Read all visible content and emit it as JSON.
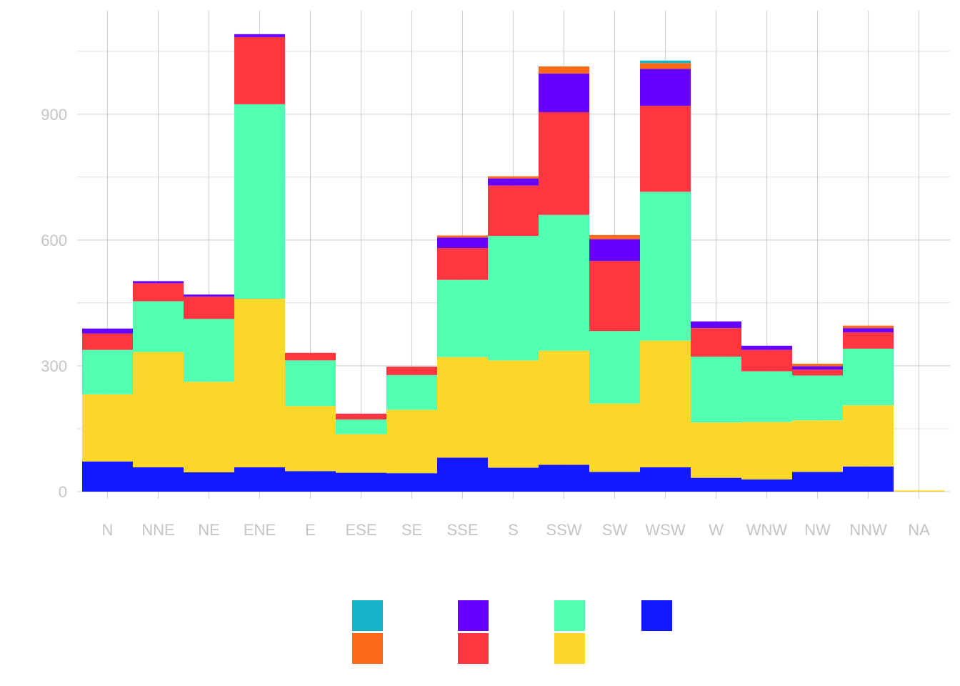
{
  "chart_data": {
    "type": "bar",
    "stacked": true,
    "categories": [
      "N",
      "NNE",
      "NE",
      "ENE",
      "E",
      "ESE",
      "SE",
      "SSE",
      "S",
      "SSW",
      "SW",
      "WSW",
      "W",
      "WNW",
      "NW",
      "NNW",
      "NA"
    ],
    "ylim": [
      0,
      1100
    ],
    "y_ticks": [
      0,
      300,
      600,
      900
    ],
    "y_tick_labels": [
      "0",
      "300",
      "600",
      "900"
    ],
    "grid": true,
    "legend": {
      "position": "bottom",
      "labels": [
        "",
        "",
        "",
        "",
        "",
        "",
        ""
      ]
    },
    "series": [
      {
        "color": "#1218ff",
        "values": [
          72,
          58,
          46,
          58,
          49,
          45,
          44,
          81,
          57,
          64,
          47,
          58,
          33,
          29,
          47,
          60,
          0
        ]
      },
      {
        "color": "#fed72b",
        "values": [
          160,
          275,
          216,
          402,
          155,
          92,
          151,
          240,
          256,
          272,
          163,
          302,
          132,
          137,
          123,
          146,
          3
        ]
      },
      {
        "color": "#52ffb2",
        "values": [
          106,
          121,
          150,
          464,
          109,
          35,
          83,
          184,
          297,
          324,
          173,
          355,
          157,
          121,
          107,
          135,
          0
        ]
      },
      {
        "color": "#ff3540",
        "values": [
          39,
          43,
          53,
          160,
          18,
          14,
          20,
          76,
          120,
          245,
          167,
          205,
          68,
          51,
          14,
          39,
          0
        ]
      },
      {
        "color": "#6600ff",
        "values": [
          12,
          5,
          5,
          7,
          0,
          0,
          0,
          25,
          17,
          92,
          52,
          88,
          16,
          10,
          8,
          10,
          0
        ]
      },
      {
        "color": "#ff6a19",
        "values": [
          0,
          0,
          0,
          0,
          0,
          0,
          0,
          5,
          5,
          17,
          10,
          14,
          0,
          0,
          6,
          6,
          0
        ]
      },
      {
        "color": "#17b3c9",
        "values": [
          0,
          0,
          0,
          0,
          0,
          0,
          0,
          0,
          0,
          0,
          0,
          6,
          0,
          0,
          0,
          0,
          0
        ]
      }
    ]
  }
}
